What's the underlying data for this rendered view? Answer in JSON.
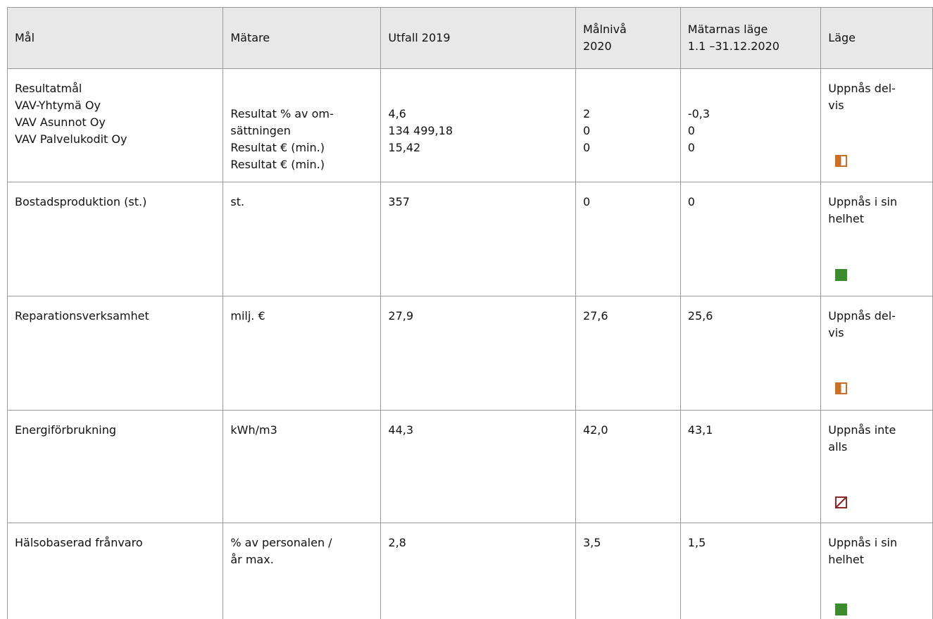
{
  "table": {
    "header": [
      [
        "Mål"
      ],
      [
        "Mätare"
      ],
      [
        "Utfall 2019"
      ],
      [
        "Målnivå",
        "2020"
      ],
      [
        "Mätarnas läge",
        "1.1 –31.12.2020"
      ],
      [
        "Läge"
      ]
    ],
    "rows": [
      [
        [
          "Resultatmål",
          "VAV-Yhtymä Oy",
          "VAV Asunnot Oy",
          "VAV Palvelukodit Oy"
        ],
        [
          "Resultat % av om-",
          "sättningen",
          "Resultat € (min.)",
          "Resultat € (min.)"
        ],
        [
          "4,6",
          "134 499,18",
          "15,42"
        ],
        [
          "2",
          "0",
          "0"
        ],
        [
          "-0,3",
          "0",
          "0"
        ],
        [
          "Uppnås del-",
          "vis"
        ]
      ],
      [
        [
          "Bostadsproduktion (st.)"
        ],
        [
          "st."
        ],
        [
          "357"
        ],
        [
          "0"
        ],
        [
          "0"
        ],
        [
          "Uppnås i sin",
          "helhet"
        ]
      ],
      [
        [
          "Reparationsverksamhet"
        ],
        [
          "milj. €"
        ],
        [
          "27,9"
        ],
        [
          "27,6"
        ],
        [
          "25,6"
        ],
        [
          "Uppnås del-",
          "vis"
        ]
      ],
      [
        [
          "Energiförbrukning"
        ],
        [
          "kWh/m3"
        ],
        [
          "44,3"
        ],
        [
          "42,0"
        ],
        [
          "43,1"
        ],
        [
          "Uppnås inte",
          "alls"
        ]
      ],
      [
        [
          "Hälsobaserad frånvaro"
        ],
        [
          "% av personalen /",
          "år max."
        ],
        [
          "2,8"
        ],
        [
          "3,5"
        ],
        [
          "1,5"
        ],
        [
          "Uppnås i sin",
          "helhet"
        ]
      ]
    ]
  }
}
